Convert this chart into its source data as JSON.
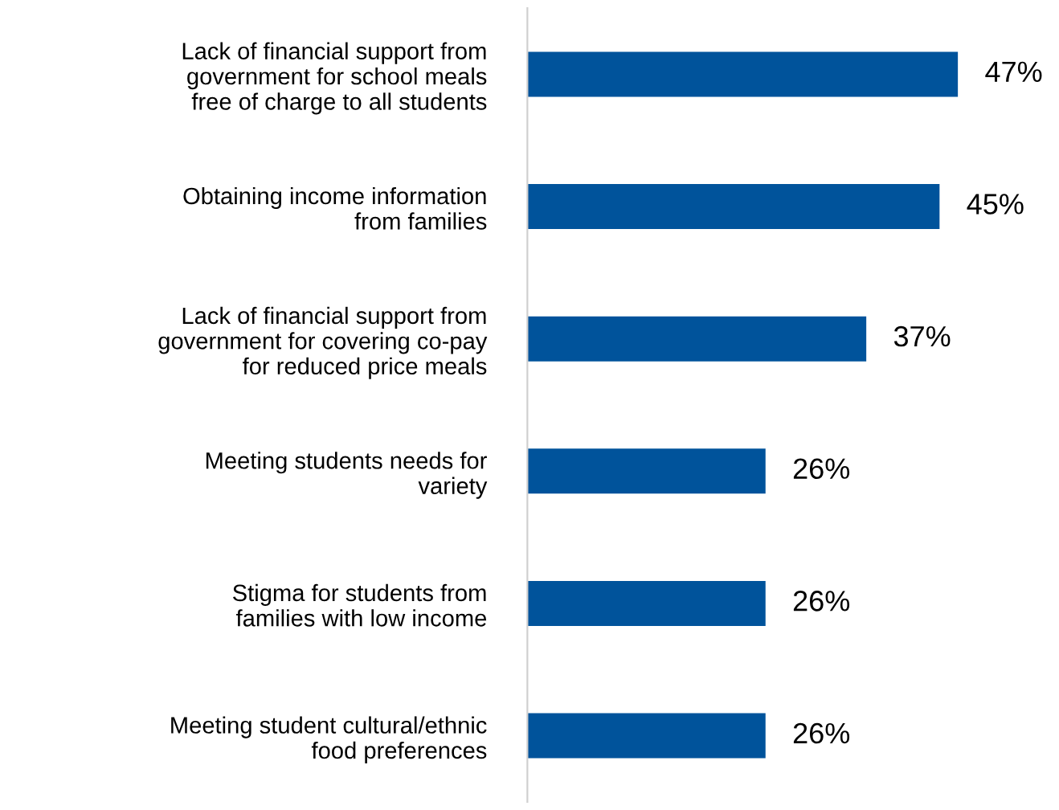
{
  "chart_data": {
    "type": "bar",
    "orientation": "horizontal",
    "categories": [
      "Lack of financial support from\ngovernment for school meals\nfree of charge to all students",
      "Obtaining income information\nfrom families",
      "Lack of financial support from\ngovernment for covering co-pay\nfor reduced price meals",
      "Meeting students needs for\nvariety",
      "Stigma for students from\nfamilies with low income",
      "Meeting student cultural/ethnic\nfood preferences"
    ],
    "values": [
      47,
      45,
      37,
      26,
      26,
      26
    ],
    "value_labels": [
      "47%",
      "45%",
      "37%",
      "26%",
      "26%",
      "26%"
    ],
    "color": "#00539b",
    "grid": false,
    "legend": false
  }
}
